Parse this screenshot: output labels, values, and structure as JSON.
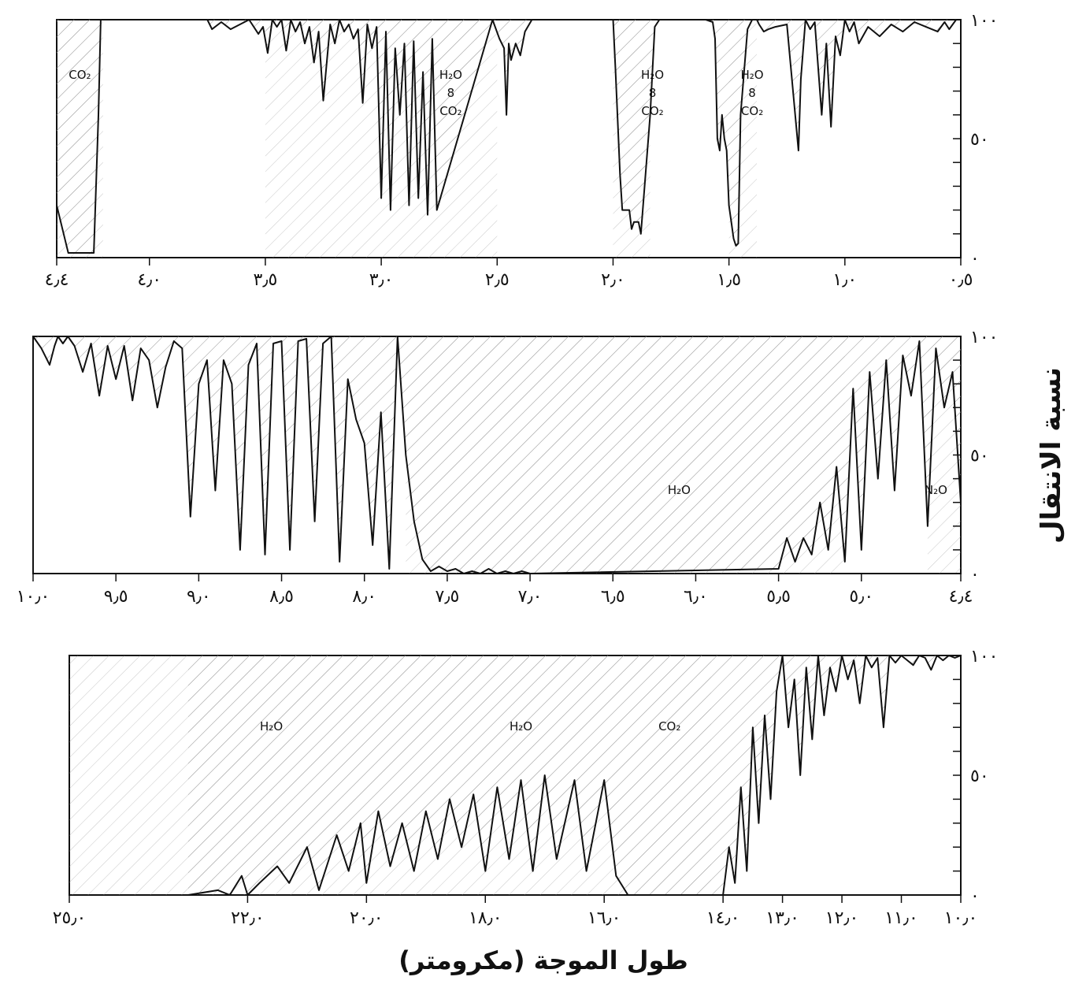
{
  "chart_data": [
    {
      "type": "line",
      "panel": "top",
      "x_range": [
        4.4,
        0.5
      ],
      "y_range": [
        0,
        100
      ],
      "x_tick_labels": [
        "٤٫٤",
        "٤٫٠",
        "٣٫٥",
        "٣٫٠",
        "٢٫٥",
        "٢٫٠",
        "١٫٥",
        "١٫٠",
        "٠٫٥"
      ],
      "x_tick_values": [
        4.4,
        4.0,
        3.5,
        3.0,
        2.5,
        2.0,
        1.5,
        1.0,
        0.5
      ],
      "y_tick_labels": [
        "١٠٠",
        "٥٠",
        "٠"
      ],
      "y_tick_values": [
        100,
        50,
        0
      ],
      "band_labels": [
        {
          "text": "CO₂",
          "x": 4.3
        },
        {
          "text": "H₂O\n8\nCO₂",
          "x": 2.7
        },
        {
          "text": "H₂O\n8\nCO₂",
          "x": 1.83
        },
        {
          "text": "H₂O\n8\nCO₂",
          "x": 1.4
        }
      ],
      "shaded_bands": [
        [
          4.4,
          4.2
        ],
        [
          3.5,
          2.5
        ],
        [
          2.0,
          1.84
        ],
        [
          1.5,
          1.38
        ]
      ],
      "transmission": {
        "x": [
          4.4,
          4.37,
          4.35,
          4.24,
          4.22,
          4.21,
          4.19,
          4.0,
          3.75,
          3.73,
          3.69,
          3.65,
          3.57,
          3.53,
          3.51,
          3.49,
          3.47,
          3.45,
          3.43,
          3.41,
          3.39,
          3.37,
          3.35,
          3.33,
          3.31,
          3.29,
          3.27,
          3.25,
          3.22,
          3.2,
          3.18,
          3.16,
          3.14,
          3.12,
          3.1,
          3.08,
          3.06,
          3.04,
          3.02,
          3.0,
          2.98,
          2.96,
          2.94,
          2.92,
          2.9,
          2.88,
          2.86,
          2.84,
          2.82,
          2.8,
          2.78,
          2.76,
          2.52,
          2.49,
          2.47,
          2.46,
          2.45,
          2.44,
          2.42,
          2.4,
          2.38,
          2.35,
          2.32,
          2.0,
          1.99,
          1.97,
          1.96,
          1.95,
          1.93,
          1.92,
          1.91,
          1.89,
          1.88,
          1.86,
          1.84,
          1.82,
          1.8,
          1.6,
          1.57,
          1.56,
          1.55,
          1.54,
          1.53,
          1.52,
          1.51,
          1.5,
          1.49,
          1.48,
          1.47,
          1.46,
          1.45,
          1.42,
          1.4,
          1.39,
          1.38,
          1.37,
          1.35,
          1.33,
          1.3,
          1.25,
          1.2,
          1.19,
          1.17,
          1.15,
          1.13,
          1.1,
          1.08,
          1.06,
          1.04,
          1.02,
          1.0,
          0.98,
          0.96,
          0.94,
          0.9,
          0.85,
          0.8,
          0.75,
          0.7,
          0.65,
          0.6,
          0.57,
          0.55,
          0.52,
          0.5
        ],
        "y": [
          22,
          10,
          2,
          2,
          60,
          100,
          100,
          100,
          100,
          96,
          99,
          96,
          100,
          94,
          97,
          86,
          100,
          97,
          100,
          87,
          100,
          95,
          99,
          90,
          97,
          82,
          95,
          66,
          98,
          90,
          100,
          95,
          98,
          92,
          96,
          65,
          98,
          88,
          97,
          25,
          95,
          20,
          88,
          60,
          90,
          22,
          91,
          25,
          78,
          18,
          92,
          20,
          100,
          92,
          88,
          60,
          90,
          83,
          90,
          85,
          95,
          100,
          100,
          100,
          80,
          35,
          20,
          20,
          20,
          12,
          15,
          15,
          10,
          35,
          60,
          97,
          100,
          100,
          99,
          92,
          50,
          45,
          60,
          50,
          45,
          22,
          15,
          8,
          5,
          6,
          60,
          96,
          100,
          100,
          100,
          98,
          95,
          96,
          97,
          98,
          45,
          75,
          100,
          96,
          99,
          60,
          90,
          55,
          93,
          85,
          100,
          95,
          99,
          90,
          97,
          93,
          98,
          95,
          99,
          97,
          95,
          99,
          96,
          100,
          100
        ]
      }
    },
    {
      "type": "line",
      "panel": "middle",
      "x_range": [
        10.0,
        4.4
      ],
      "y_range": [
        0,
        100
      ],
      "x_tick_labels": [
        "١٠٫٠",
        "٩٫٥",
        "٩٫٠",
        "٨٫٥",
        "٨٫٠",
        "٧٫٥",
        "٧٫٠",
        "٦٫٥",
        "٦٫٠",
        "٥٫٥",
        "٥٫٠",
        "٤٫٤"
      ],
      "x_tick_values": [
        10.0,
        9.5,
        9.0,
        8.5,
        8.0,
        7.5,
        7.0,
        6.5,
        6.0,
        5.5,
        5.0,
        4.4
      ],
      "y_tick_labels": [
        "١٠٠",
        "٥٠",
        "٠"
      ],
      "y_tick_values": [
        100,
        50,
        0
      ],
      "band_labels": [
        {
          "text": "H₂O",
          "x": 6.1
        },
        {
          "text": "N₂O",
          "x": 4.55
        }
      ],
      "shaded_bands": [
        [
          7.75,
          5.1
        ],
        [
          4.6,
          4.4
        ]
      ],
      "transmission": {
        "x": [
          10.0,
          9.95,
          9.9,
          9.87,
          9.85,
          9.82,
          9.79,
          9.75,
          9.7,
          9.65,
          9.6,
          9.55,
          9.5,
          9.45,
          9.4,
          9.35,
          9.3,
          9.25,
          9.2,
          9.15,
          9.1,
          9.05,
          9.0,
          8.95,
          8.9,
          8.85,
          8.8,
          8.75,
          8.7,
          8.65,
          8.6,
          8.55,
          8.5,
          8.45,
          8.4,
          8.35,
          8.3,
          8.25,
          8.2,
          8.15,
          8.1,
          8.05,
          8.0,
          7.95,
          7.9,
          7.85,
          7.8,
          7.75,
          7.7,
          7.65,
          7.6,
          7.55,
          7.5,
          7.45,
          7.4,
          7.35,
          7.3,
          7.25,
          7.2,
          7.15,
          7.1,
          7.05,
          7.0,
          5.5,
          5.45,
          5.4,
          5.35,
          5.3,
          5.25,
          5.2,
          5.15,
          5.1,
          5.05,
          5.0,
          4.95,
          4.9,
          4.85,
          4.8,
          4.75,
          4.7,
          4.65,
          4.6,
          4.55,
          4.5,
          4.45,
          4.4
        ],
        "y": [
          100,
          95,
          88,
          96,
          100,
          97,
          100,
          96,
          85,
          97,
          75,
          96,
          82,
          96,
          73,
          95,
          90,
          70,
          87,
          98,
          95,
          24,
          80,
          90,
          35,
          90,
          80,
          10,
          88,
          97,
          8,
          97,
          98,
          10,
          98,
          99,
          22,
          97,
          100,
          5,
          82,
          65,
          55,
          12,
          68,
          2,
          100,
          50,
          22,
          6,
          1,
          3,
          1,
          2,
          0,
          1,
          0,
          2,
          0,
          1,
          0,
          1,
          0,
          2,
          15,
          5,
          15,
          8,
          30,
          10,
          45,
          5,
          78,
          10,
          85,
          40,
          90,
          35,
          92,
          75,
          98,
          20,
          95,
          70,
          85,
          30
        ]
      }
    },
    {
      "type": "line",
      "panel": "bottom",
      "x_range": [
        25.0,
        10.0
      ],
      "y_range": [
        0,
        100
      ],
      "x_tick_labels": [
        "٢٥٫٠",
        "٢٢٫٠",
        "٢٠٫٠",
        "١٨٫٠",
        "١٦٫٠",
        "١٤٫٠",
        "١٣٫٠",
        "١٢٫٠",
        "١١٫٠",
        "١٠٫٠"
      ],
      "x_tick_values": [
        25.0,
        22.0,
        20.0,
        18.0,
        16.0,
        14.0,
        13.0,
        12.0,
        11.0,
        10.0
      ],
      "y_tick_labels": [
        "١٠٠",
        "٥٠",
        "٠"
      ],
      "y_tick_values": [
        100,
        50,
        0
      ],
      "band_labels": [
        {
          "text": "H₂O",
          "x": 21.6
        },
        {
          "text": "H₂O",
          "x": 17.4
        },
        {
          "text": "CO₂",
          "x": 14.9
        }
      ],
      "shaded_bands": [
        [
          25.0,
          15.5
        ],
        [
          15.5,
          14.2
        ]
      ],
      "transmission": {
        "x": [
          23.0,
          22.5,
          22.3,
          22.1,
          22.0,
          21.8,
          21.5,
          21.3,
          21.0,
          20.8,
          20.5,
          20.3,
          20.1,
          20.0,
          19.8,
          19.6,
          19.4,
          19.2,
          19.0,
          18.8,
          18.6,
          18.4,
          18.2,
          18.0,
          17.8,
          17.6,
          17.4,
          17.2,
          17.0,
          16.8,
          16.5,
          16.3,
          16.0,
          15.8,
          15.6,
          14.0,
          13.9,
          13.8,
          13.7,
          13.6,
          13.5,
          13.4,
          13.3,
          13.2,
          13.1,
          13.0,
          12.9,
          12.8,
          12.7,
          12.6,
          12.5,
          12.4,
          12.3,
          12.2,
          12.1,
          12.0,
          11.9,
          11.8,
          11.7,
          11.6,
          11.5,
          11.4,
          11.3,
          11.2,
          11.1,
          11.0,
          10.9,
          10.8,
          10.7,
          10.6,
          10.5,
          10.4,
          10.3,
          10.2,
          10.1,
          10.0
        ],
        "y": [
          0,
          2,
          0,
          8,
          0,
          5,
          12,
          5,
          20,
          2,
          25,
          10,
          30,
          5,
          35,
          12,
          30,
          10,
          35,
          15,
          40,
          20,
          42,
          10,
          45,
          15,
          48,
          10,
          50,
          15,
          48,
          10,
          48,
          8,
          0,
          0,
          20,
          5,
          45,
          10,
          70,
          30,
          75,
          40,
          85,
          100,
          70,
          90,
          50,
          95,
          65,
          100,
          75,
          95,
          85,
          100,
          90,
          98,
          80,
          100,
          95,
          99,
          70,
          100,
          97,
          100,
          98,
          96,
          100,
          99,
          94,
          100,
          98,
          100,
          99,
          100
        ]
      }
    }
  ],
  "axis_text": {
    "ylabel": "نسبة الانتقال",
    "xlabel": "طول الموجة (مكرومتر)"
  }
}
